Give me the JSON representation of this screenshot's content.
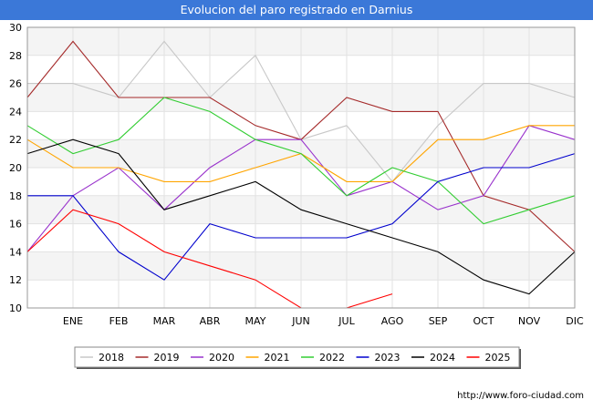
{
  "title": "Evolucion del paro registrado en Darnius",
  "footer_url": "http://www.foro-ciudad.com",
  "chart_data": {
    "type": "line",
    "categories": [
      "",
      "ENE",
      "FEB",
      "MAR",
      "ABR",
      "MAY",
      "JUN",
      "JUL",
      "AGO",
      "SEP",
      "OCT",
      "NOV",
      "DIC"
    ],
    "ylim": [
      10,
      30
    ],
    "yticks": [
      10,
      12,
      14,
      16,
      18,
      20,
      22,
      24,
      26,
      28,
      30
    ],
    "grid": true,
    "legend_position": "bottom",
    "series": [
      {
        "name": "2018",
        "color": "#c8c8c8",
        "values": [
          26,
          26,
          25,
          29,
          25,
          28,
          22,
          23,
          19,
          23,
          26,
          26,
          25
        ]
      },
      {
        "name": "2019",
        "color": "#a52a2a",
        "values": [
          25,
          29,
          25,
          25,
          25,
          23,
          22,
          25,
          24,
          24,
          18,
          17,
          14
        ]
      },
      {
        "name": "2020",
        "color": "#9932cc",
        "values": [
          14,
          18,
          20,
          17,
          20,
          22,
          22,
          18,
          19,
          17,
          18,
          23,
          22
        ]
      },
      {
        "name": "2021",
        "color": "#ffa500",
        "values": [
          22,
          20,
          20,
          19,
          19,
          20,
          21,
          19,
          19,
          22,
          22,
          23,
          23
        ]
      },
      {
        "name": "2022",
        "color": "#32cd32",
        "values": [
          23,
          21,
          22,
          25,
          24,
          22,
          21,
          18,
          20,
          19,
          16,
          17,
          18
        ]
      },
      {
        "name": "2023",
        "color": "#0000cd",
        "values": [
          18,
          18,
          14,
          12,
          16,
          15,
          15,
          15,
          16,
          19,
          20,
          20,
          21
        ]
      },
      {
        "name": "2024",
        "color": "#000000",
        "values": [
          21,
          22,
          21,
          17,
          18,
          19,
          17,
          16,
          15,
          14,
          12,
          11,
          14
        ]
      },
      {
        "name": "2025",
        "color": "#ff0000",
        "values": [
          14,
          17,
          16,
          14,
          13,
          12,
          10,
          10,
          11,
          null,
          null,
          null,
          null
        ]
      }
    ]
  }
}
